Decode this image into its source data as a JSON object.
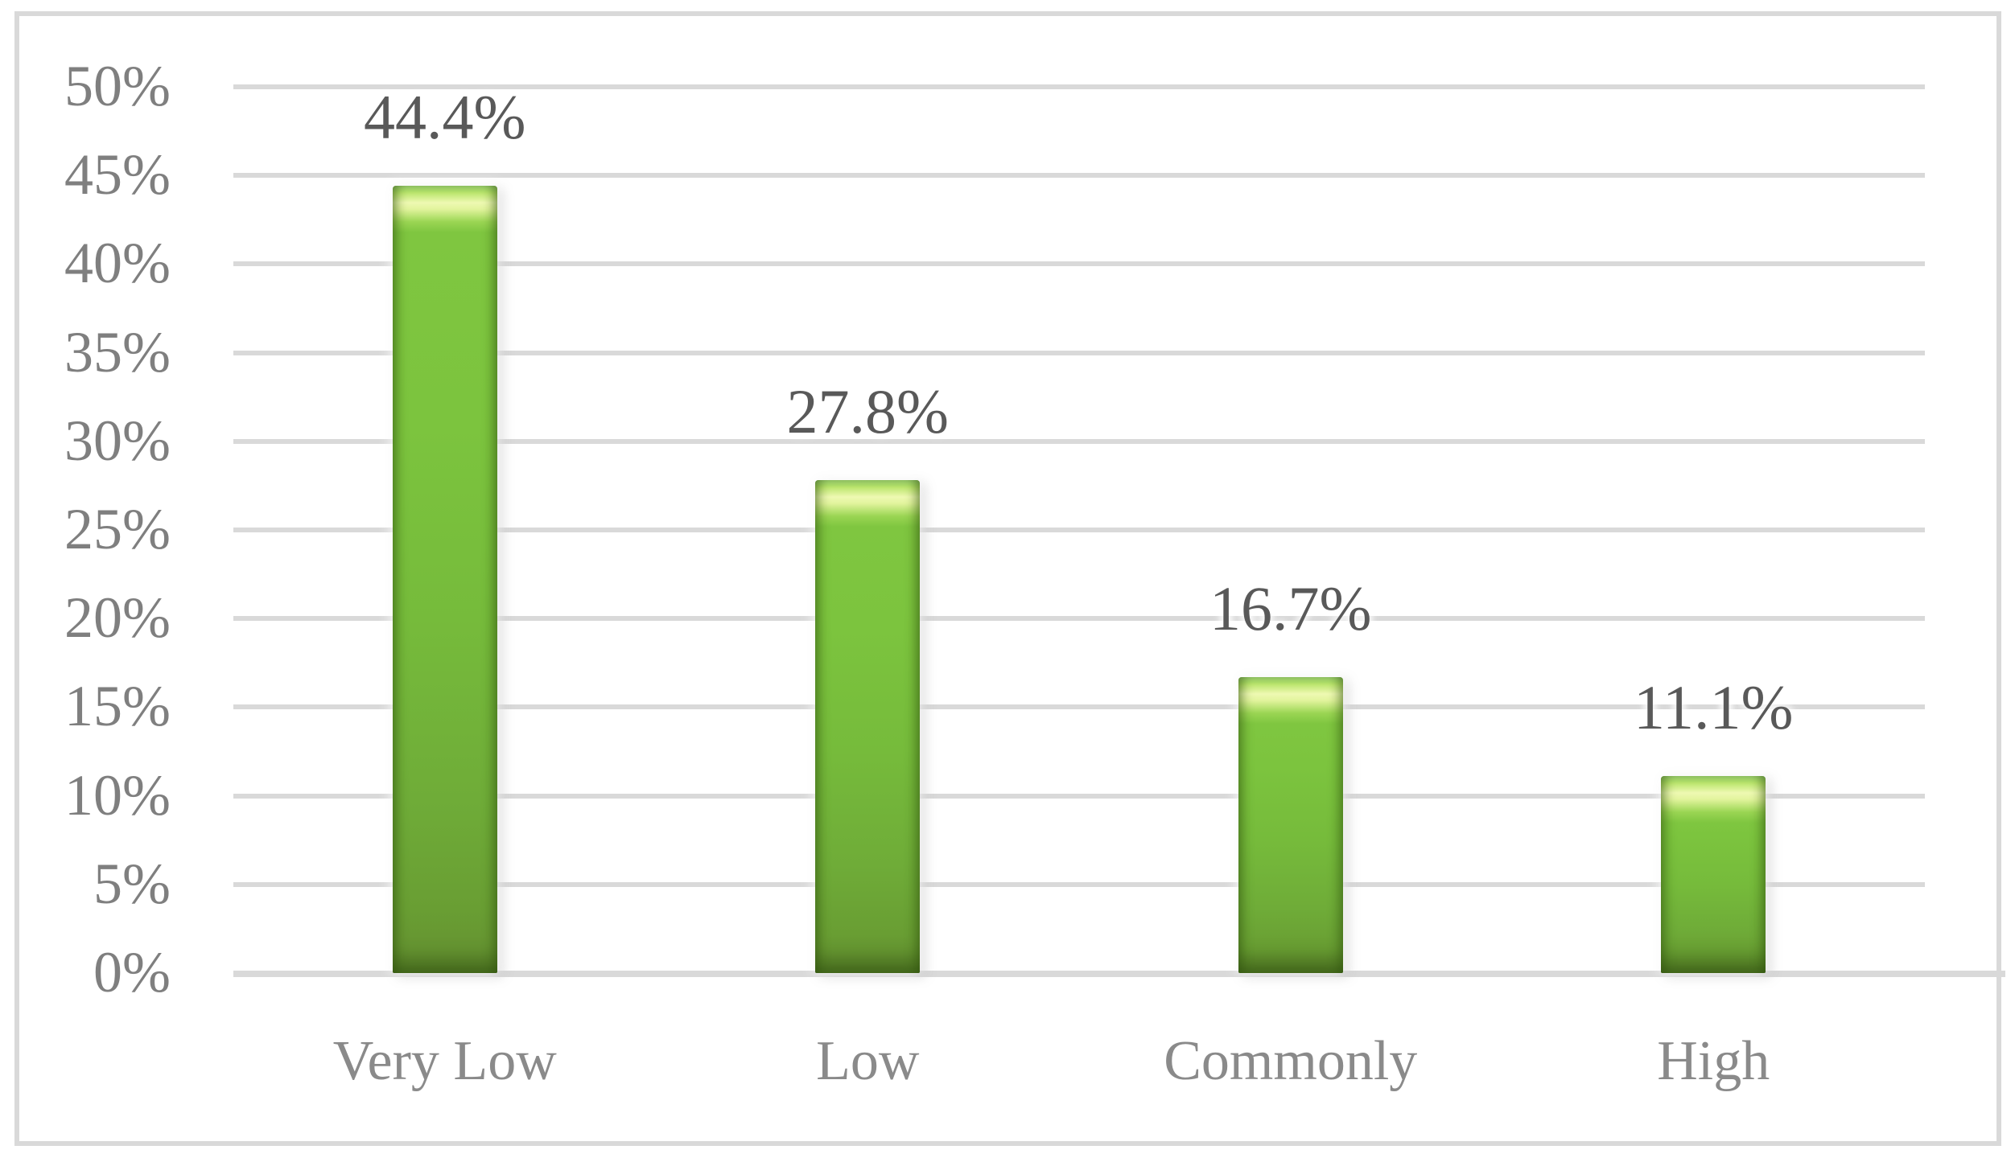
{
  "figure": {
    "background_color": "#ffffff",
    "border_color": "#d9d9d9"
  },
  "chart_data": {
    "type": "bar",
    "title": "",
    "xlabel": "",
    "ylabel": "",
    "categories": [
      "Very Low",
      "Low",
      "Commonly",
      "High"
    ],
    "values": [
      44.4,
      27.8,
      16.7,
      11.1
    ],
    "data_labels": [
      "44.4%",
      "27.8%",
      "16.7%",
      "11.1%"
    ],
    "ylim": [
      0,
      50
    ],
    "y_tick_step": 5,
    "y_tick_labels": [
      "0%",
      "5%",
      "10%",
      "15%",
      "20%",
      "25%",
      "30%",
      "35%",
      "40%",
      "45%",
      "50%"
    ],
    "grid": true,
    "legend": false,
    "colors": {
      "bar_fill": "#7cc43e",
      "bar_fill_dark": "#699e33",
      "bar_bevel_highlight": "#eef9b2",
      "gridline": "#d9d9d9",
      "axis_line": "#d9d9d9",
      "y_tick_label": "#7f7f7f",
      "data_label": "#595959",
      "category_label": "#8a8a8a"
    }
  }
}
